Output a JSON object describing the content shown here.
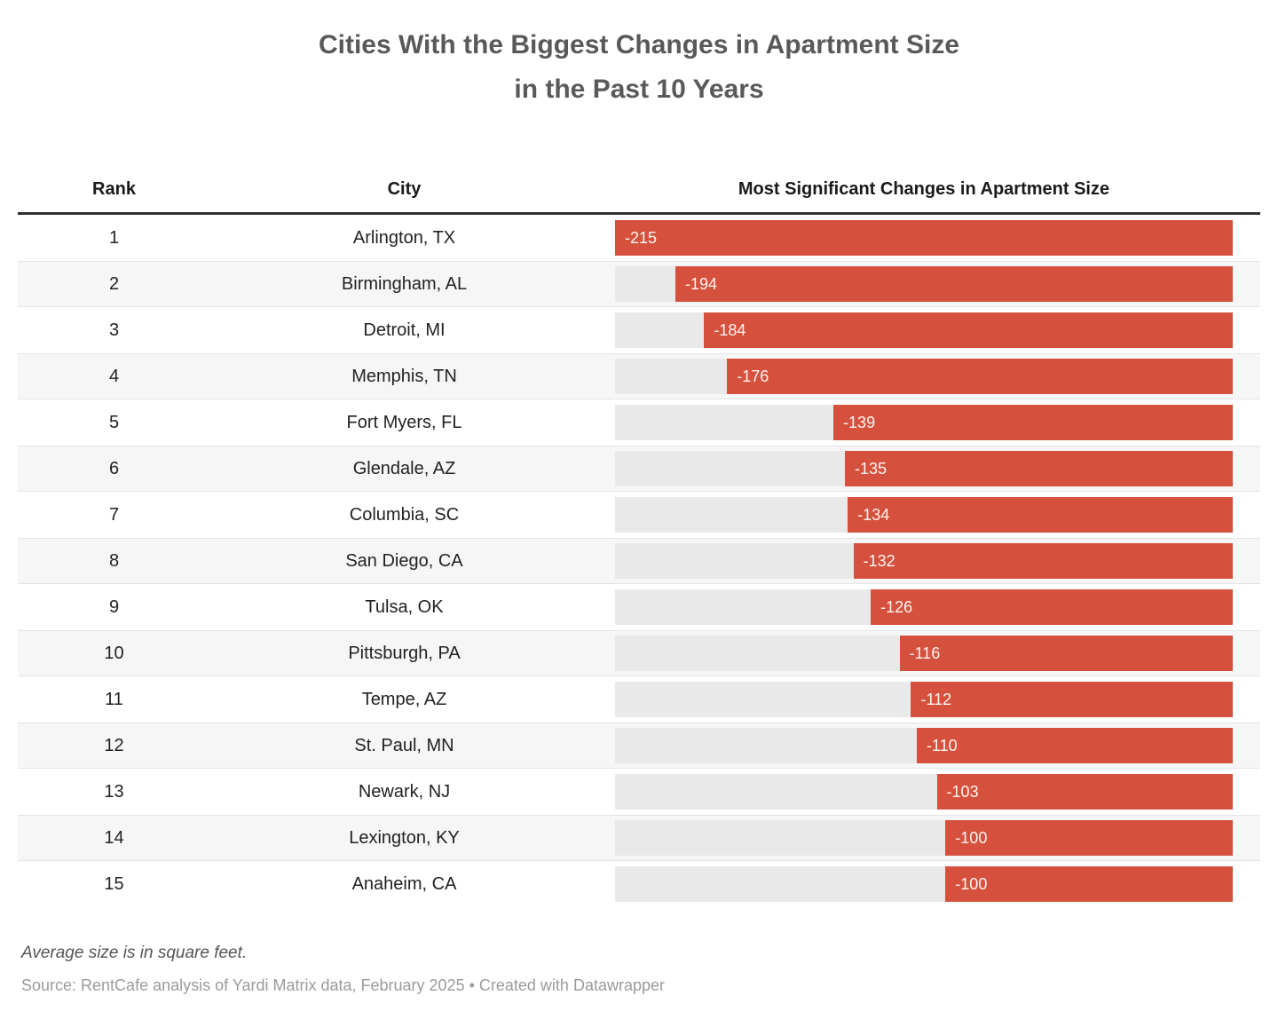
{
  "title": {
    "line1": "Cities With the Biggest Changes in Apartment Size",
    "line2": "in the Past 10 Years"
  },
  "table": {
    "columns": [
      "Rank",
      "City",
      "Most Significant Changes in Apartment Size"
    ],
    "rows": [
      {
        "rank": "1",
        "city": "Arlington, TX",
        "value": -215,
        "label": "-215"
      },
      {
        "rank": "2",
        "city": "Birmingham, AL",
        "value": -194,
        "label": "-194"
      },
      {
        "rank": "3",
        "city": "Detroit, MI",
        "value": -184,
        "label": "-184"
      },
      {
        "rank": "4",
        "city": "Memphis, TN",
        "value": -176,
        "label": "-176"
      },
      {
        "rank": "5",
        "city": "Fort Myers, FL",
        "value": -139,
        "label": "-139"
      },
      {
        "rank": "6",
        "city": "Glendale, AZ",
        "value": -135,
        "label": "-135"
      },
      {
        "rank": "7",
        "city": "Columbia, SC",
        "value": -134,
        "label": "-134"
      },
      {
        "rank": "8",
        "city": "San Diego, CA",
        "value": -132,
        "label": "-132"
      },
      {
        "rank": "9",
        "city": "Tulsa, OK",
        "value": -126,
        "label": "-126"
      },
      {
        "rank": "10",
        "city": "Pittsburgh, PA",
        "value": -116,
        "label": "-116"
      },
      {
        "rank": "11",
        "city": "Tempe, AZ",
        "value": -112,
        "label": "-112"
      },
      {
        "rank": "12",
        "city": "St. Paul, MN",
        "value": -110,
        "label": "-110"
      },
      {
        "rank": "13",
        "city": "Newark, NJ",
        "value": -103,
        "label": "-103"
      },
      {
        "rank": "14",
        "city": "Lexington, KY",
        "value": -100,
        "label": "-100"
      },
      {
        "rank": "15",
        "city": "Anaheim, CA",
        "value": -100,
        "label": "-100"
      }
    ]
  },
  "chart_data": {
    "type": "bar",
    "orientation": "horizontal",
    "title": "Cities With the Biggest Changes in Apartment Size in the Past 10 Years",
    "categories": [
      "Arlington, TX",
      "Birmingham, AL",
      "Detroit, MI",
      "Memphis, TN",
      "Fort Myers, FL",
      "Glendale, AZ",
      "Columbia, SC",
      "San Diego, CA",
      "Tulsa, OK",
      "Pittsburgh, PA",
      "Tempe, AZ",
      "St. Paul, MN",
      "Newark, NJ",
      "Lexington, KY",
      "Anaheim, CA"
    ],
    "values": [
      -215,
      -194,
      -184,
      -176,
      -139,
      -135,
      -134,
      -132,
      -126,
      -116,
      -112,
      -110,
      -103,
      -100,
      -100
    ],
    "xlabel": "Most Significant Changes in Apartment Size",
    "ylabel": "City",
    "xlim": [
      -215,
      0
    ],
    "unit": "square feet",
    "grid": false,
    "legend": false,
    "bar_color": "#d5513d"
  },
  "notes": "Average size is in square feet.",
  "source": "Source: RentCafe analysis of Yardi Matrix data, February 2025 • Created with Datawrapper",
  "colors": {
    "bar": "#d5513d",
    "track": "#e9e9e9",
    "alt_row": "#f6f6f6",
    "alt_row_border": "#e4e4e4",
    "rule": "#2f2f2f",
    "title_text": "#595959",
    "header_text": "#1a1a1a",
    "body_text": "#222222",
    "bar_label_text": "#fdf5f1",
    "notes_text": "#555555",
    "source_text": "#9b9b9b"
  }
}
